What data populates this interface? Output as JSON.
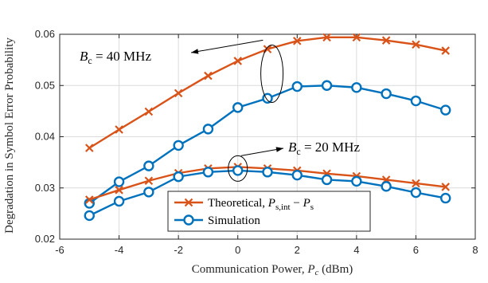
{
  "chart_data": {
    "type": "line",
    "xlabel": "Communication Power, P_c (dBm)",
    "ylabel": "Degradation in Symbol Error Probability",
    "xlim": [
      -6,
      8
    ],
    "ylim": [
      0.02,
      0.06
    ],
    "xticks": [
      -6,
      -4,
      -2,
      0,
      2,
      4,
      6,
      8
    ],
    "yticks": [
      0.02,
      0.03,
      0.04,
      0.05,
      0.06
    ],
    "xtick_labels": [
      "-6",
      "-4",
      "-2",
      "0",
      "2",
      "4",
      "6",
      "8"
    ],
    "ytick_labels": [
      "0.02",
      "0.03",
      "0.04",
      "0.05",
      "0.06"
    ],
    "grid": true,
    "legend_position": "bottom-center",
    "x": [
      -5,
      -4,
      -3,
      -2,
      -1,
      0,
      1,
      2,
      3,
      4,
      5,
      6,
      7
    ],
    "series": [
      {
        "name": "Theoretical, P_s,int − P_s",
        "group": "B_c = 40 MHz",
        "marker": "x",
        "color": "#d95319",
        "values": [
          0.0378,
          0.0414,
          0.0449,
          0.0485,
          0.0519,
          0.0548,
          0.0571,
          0.0587,
          0.0594,
          0.0594,
          0.0588,
          0.058,
          0.0568
        ]
      },
      {
        "name": "Simulation",
        "group": "B_c = 40 MHz",
        "marker": "o",
        "color": "#0072bd",
        "values": [
          0.027,
          0.0312,
          0.0343,
          0.0383,
          0.0415,
          0.0457,
          0.0475,
          0.0498,
          0.05,
          0.0496,
          0.0484,
          0.047,
          0.0452
        ]
      },
      {
        "name": "Theoretical, P_s,int − P_s",
        "group": "B_c = 20 MHz",
        "marker": "x",
        "color": "#d95319",
        "values": [
          0.0277,
          0.0296,
          0.0314,
          0.0329,
          0.0338,
          0.0341,
          0.0338,
          0.0334,
          0.0328,
          0.0323,
          0.0316,
          0.0309,
          0.0302
        ]
      },
      {
        "name": "Simulation",
        "group": "B_c = 20 MHz",
        "marker": "o",
        "color": "#0072bd",
        "values": [
          0.0246,
          0.0274,
          0.0292,
          0.0322,
          0.0331,
          0.0334,
          0.0331,
          0.0325,
          0.0316,
          0.0313,
          0.0303,
          0.0291,
          0.028
        ]
      }
    ],
    "annotations": [
      {
        "text_var": "B",
        "text_sub": "c",
        "text_rest": " = 40 MHz",
        "target": "B_c = 40 MHz"
      },
      {
        "text_var": "B",
        "text_sub": "c",
        "text_rest": " = 20 MHz",
        "target": "B_c = 20 MHz"
      }
    ],
    "legend": [
      {
        "label_main": "Theoretical, ",
        "label_math": "P",
        "label_sub": "s,int",
        "label_rest": " − ",
        "label_math2": "P",
        "label_sub2": "s",
        "marker": "x",
        "color": "#d95319"
      },
      {
        "label_main": "Simulation",
        "marker": "o",
        "color": "#0072bd"
      }
    ]
  }
}
